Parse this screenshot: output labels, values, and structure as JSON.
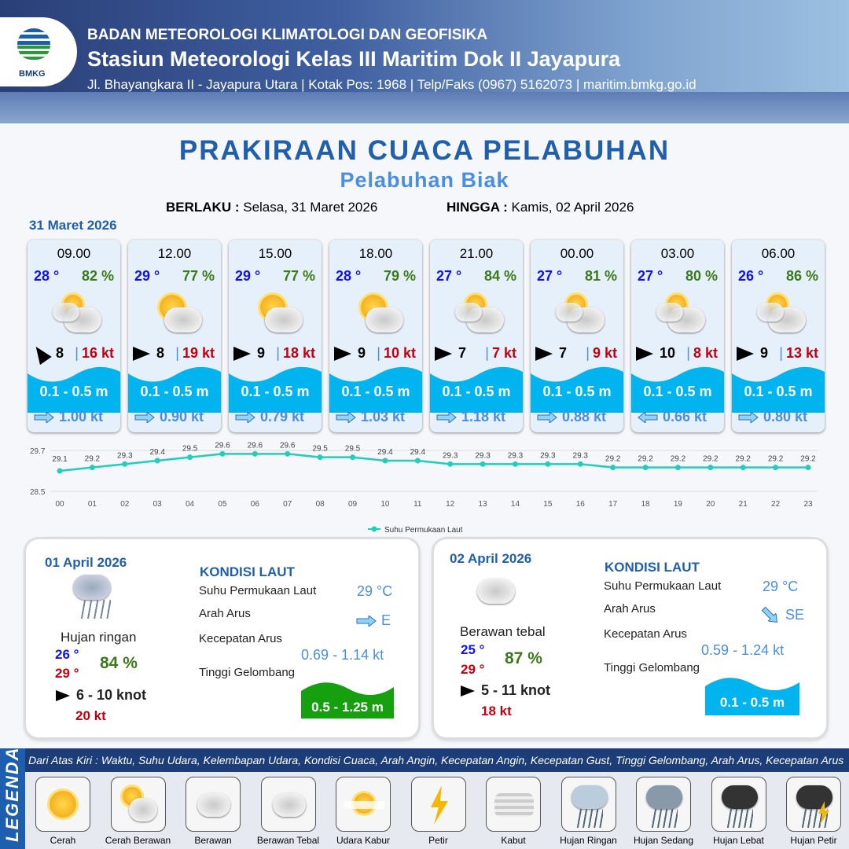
{
  "header": {
    "org": "BADAN METEOROLOGI KLIMATOLOGI DAN GEOFISIKA",
    "station": "Stasiun Meteorologi Kelas III Maritim Dok II Jayapura",
    "address": "Jl. Bhayangkara II - Jayapura Utara | Kotak Pos: 1968 | Telp/Faks (0967) 5162073 | maritim.bmkg.go.id",
    "logo_text": "BMKG"
  },
  "title": "PRAKIRAAN CUACA PELABUHAN",
  "subtitle": "Pelabuhan Biak",
  "validity": {
    "from_label": "BERLAKU :",
    "from": "Selasa, 31 Maret 2026",
    "to_label": "HINGGA :",
    "to": "Kamis, 02 April 2026"
  },
  "day1": {
    "date": "31 Maret 2026",
    "cards": [
      {
        "time": "09.00",
        "temp": "28 °",
        "rh": "82 %",
        "weather": "Berawan",
        "wind_dir": "NW",
        "wind": "8",
        "gust": "16 kt",
        "wave": "0.1 - 0.5 m",
        "current_dir": "E",
        "current": "1.00 kt"
      },
      {
        "time": "12.00",
        "temp": "29 °",
        "rh": "77 %",
        "weather": "Cerah Berawan",
        "wind_dir": "E",
        "wind": "8",
        "gust": "19 kt",
        "wave": "0.1 - 0.5 m",
        "current_dir": "E",
        "current": "0.90 kt"
      },
      {
        "time": "15.00",
        "temp": "29 °",
        "rh": "77 %",
        "weather": "Cerah Berawan",
        "wind_dir": "E",
        "wind": "9",
        "gust": "18 kt",
        "wave": "0.1 - 0.5 m",
        "current_dir": "E",
        "current": "0.79 kt"
      },
      {
        "time": "18.00",
        "temp": "28 °",
        "rh": "79 %",
        "weather": "Cerah Berawan",
        "wind_dir": "E",
        "wind": "9",
        "gust": "10 kt",
        "wave": "0.1 - 0.5 m",
        "current_dir": "E",
        "current": "1.03 kt"
      },
      {
        "time": "21.00",
        "temp": "27 °",
        "rh": "84 %",
        "weather": "Berawan",
        "wind_dir": "E",
        "wind": "7",
        "gust": "7 kt",
        "wave": "0.1 - 0.5 m",
        "current_dir": "E",
        "current": "1.18 kt"
      },
      {
        "time": "00.00",
        "temp": "27 °",
        "rh": "81 %",
        "weather": "Berawan",
        "wind_dir": "E",
        "wind": "7",
        "gust": "9 kt",
        "wave": "0.1 - 0.5 m",
        "current_dir": "E",
        "current": "0.88 kt"
      },
      {
        "time": "03.00",
        "temp": "27 °",
        "rh": "80 %",
        "weather": "Berawan",
        "wind_dir": "E",
        "wind": "10",
        "gust": "8 kt",
        "wave": "0.1 - 0.5 m",
        "current_dir": "W",
        "current": "0.66 kt"
      },
      {
        "time": "06.00",
        "temp": "26 °",
        "rh": "86 %",
        "weather": "Berawan",
        "wind_dir": "E",
        "wind": "9",
        "gust": "13 kt",
        "wave": "0.1 - 0.5 m",
        "current_dir": "E",
        "current": "0.80 kt"
      }
    ]
  },
  "chart_data": {
    "type": "line",
    "categories": [
      "00",
      "01",
      "02",
      "03",
      "04",
      "05",
      "06",
      "07",
      "08",
      "09",
      "10",
      "11",
      "12",
      "13",
      "14",
      "15",
      "16",
      "17",
      "18",
      "19",
      "20",
      "21",
      "22",
      "23"
    ],
    "series": [
      {
        "name": "Suhu Permukaan Laut",
        "values": [
          29.1,
          29.2,
          29.3,
          29.4,
          29.5,
          29.6,
          29.6,
          29.6,
          29.5,
          29.5,
          29.4,
          29.4,
          29.3,
          29.3,
          29.3,
          29.3,
          29.3,
          29.2,
          29.2,
          29.2,
          29.2,
          29.2,
          29.2,
          29.2
        ]
      }
    ],
    "yticks": [
      "29.7",
      "28.5"
    ],
    "ylim": [
      28.5,
      29.7
    ],
    "legend": "bottom",
    "color": "#22cdb9"
  },
  "day2": {
    "date": "01 April 2026",
    "weather": "Hujan ringan",
    "tmin": "26 °",
    "tmax": "29 °",
    "rh": "84 %",
    "wind": "6  - 10 knot",
    "gust": "20 kt",
    "sea": {
      "title": "KONDISI LAUT",
      "sst_label": "Suhu Permukaan Laut",
      "sst": "29 °C",
      "dir_label": "Arah Arus",
      "dir": "E",
      "speed_label": "Kecepatan Arus",
      "speed_min": "0.69",
      "speed_max": "-  1.14 kt",
      "wave_label": "Tinggi Gelombang",
      "wave": "0.5 - 1.25 m",
      "wave_color": "#16a010"
    }
  },
  "day3": {
    "date": "02 April 2026",
    "weather": "Berawan tebal",
    "tmin": "25 °",
    "tmax": "29 °",
    "rh": "87 %",
    "wind": "5  - 11 knot",
    "gust": "18 kt",
    "sea": {
      "title": "KONDISI LAUT",
      "sst_label": "Suhu Permukaan Laut",
      "sst": "29 °C",
      "dir_label": "Arah Arus",
      "dir": "SE",
      "speed_label": "Kecepatan Arus",
      "speed_min": "0.59",
      "speed_max": "-  1.24 kt",
      "wave_label": "Tinggi Gelombang",
      "wave": "0.1 - 0.5 m",
      "wave_color": "#00b4f0"
    }
  },
  "legend": {
    "title": "LEGENDA",
    "note": "Dari Atas Kiri : Waktu, Suhu Udara, Kelembapan Udara, Kondisi Cuaca, Arah Angin, Kecepatan Angin, Kecepatan Gust, Tinggi Gelombang, Arah Arus, Kecepatan Arus",
    "items": [
      "Cerah",
      "Cerah Berawan",
      "Berawan",
      "Berawan Tebal",
      "Udara Kabur",
      "Petir",
      "Kabut",
      "Hujan Ringan",
      "Hujan Sedang",
      "Hujan Lebat",
      "Hujan Petir"
    ]
  }
}
